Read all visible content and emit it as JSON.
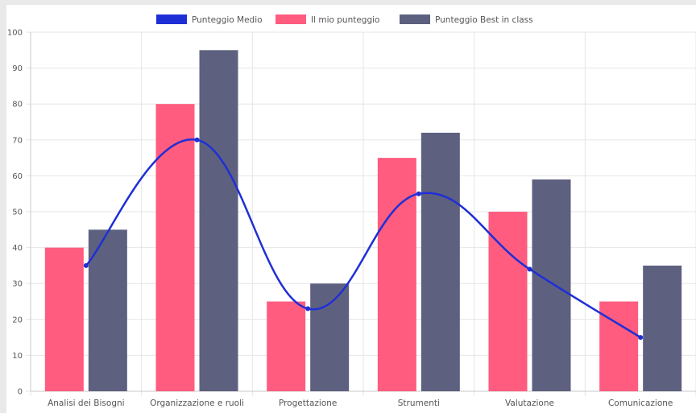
{
  "chart_data": {
    "type": "bar",
    "categories": [
      "Analisi dei Bisogni",
      "Organizzazione e ruoli",
      "Progettazione",
      "Strumenti",
      "Valutazione",
      "Comunicazione"
    ],
    "series": [
      {
        "name": "Il mio punteggio",
        "type": "bar",
        "color": "#ff5c7f",
        "values": [
          40,
          80,
          25,
          65,
          50,
          25
        ]
      },
      {
        "name": "Punteggio Best in class",
        "type": "bar",
        "color": "#5e6080",
        "values": [
          45,
          95,
          30,
          72,
          59,
          35
        ]
      },
      {
        "name": "Punteggio Medio",
        "type": "line",
        "color": "#1f2fd6",
        "values": [
          35,
          70,
          23,
          55,
          34,
          15
        ]
      }
    ],
    "legend_order": [
      "Punteggio Medio",
      "Il mio punteggio",
      "Punteggio Best in class"
    ],
    "ylim": [
      0,
      100
    ],
    "yticks": [
      0,
      10,
      20,
      30,
      40,
      50,
      60,
      70,
      80,
      90,
      100
    ],
    "grid": true,
    "legend_position": "top-center",
    "line_smooth": true
  }
}
